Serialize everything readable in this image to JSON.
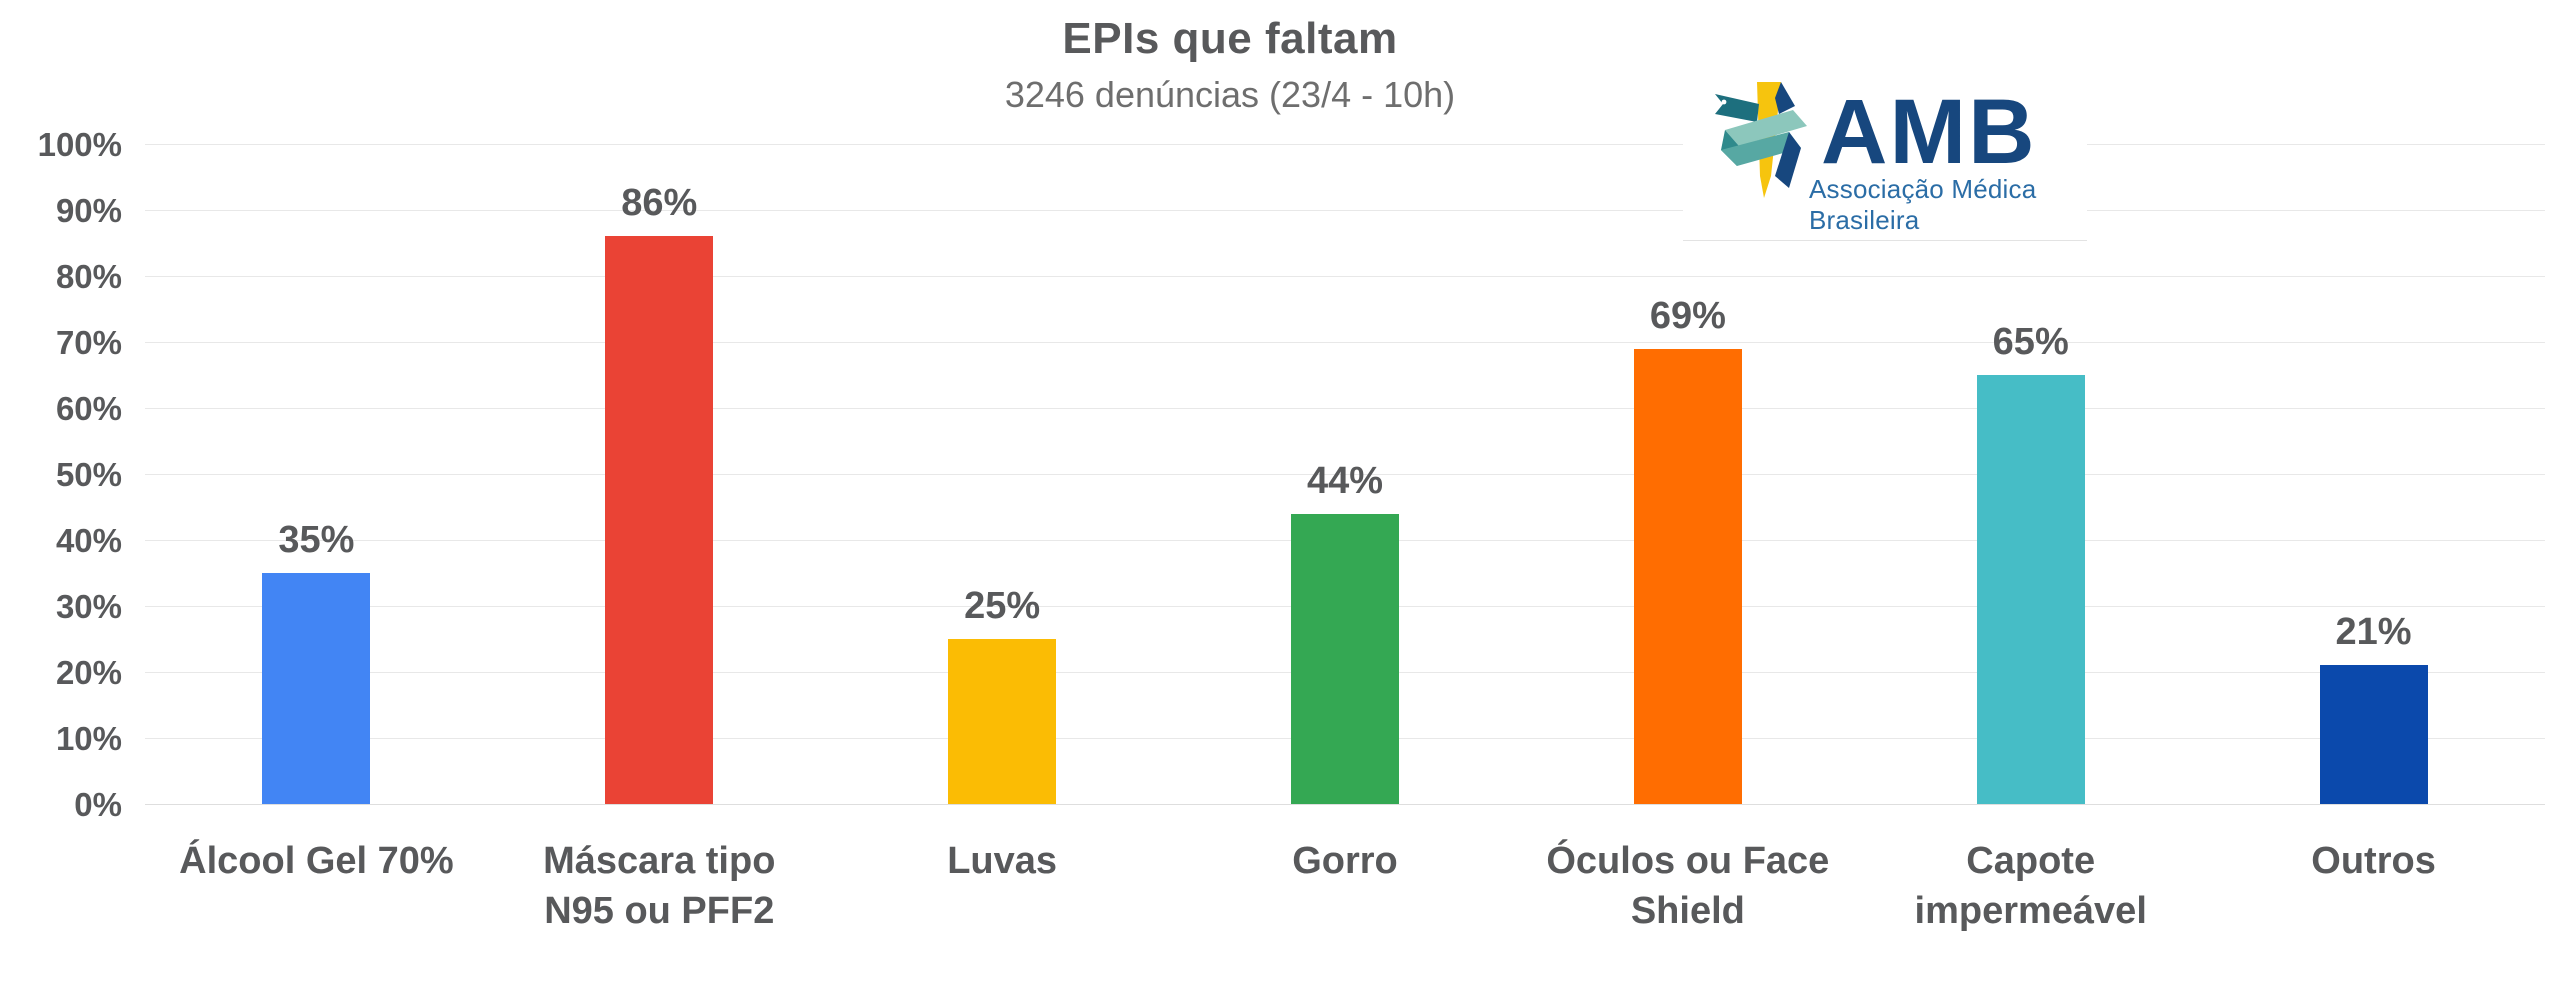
{
  "title": "EPIs que faltam",
  "subtitle": "3246 denúncias (23/4 - 10h)",
  "logo": {
    "acronym": "AMB",
    "tagline": "Associação Médica Brasileira",
    "navy": "#17477e",
    "blue": "#2b6da6",
    "yellow": "#f6c40e",
    "teal_dark": "#2f8a8c",
    "teal_light": "#8cc7bc"
  },
  "chart_data": {
    "type": "bar",
    "title": "EPIs que faltam",
    "subtitle": "3246 denúncias (23/4 - 10h)",
    "categories": [
      "Álcool Gel 70%",
      "Máscara tipo N95 ou PFF2",
      "Luvas",
      "Gorro",
      "Óculos ou Face Shield",
      "Capote impermeável",
      "Outros"
    ],
    "values": [
      35,
      86,
      25,
      44,
      69,
      65,
      21
    ],
    "value_labels": [
      "35%",
      "86%",
      "25%",
      "44%",
      "69%",
      "65%",
      "21%"
    ],
    "bar_colors": [
      "#4285f4",
      "#ea4335",
      "#fbbc04",
      "#34a853",
      "#ff6d01",
      "#46bdc6",
      "#0b49ac"
    ],
    "y_tick_labels": [
      "0%",
      "10%",
      "20%",
      "30%",
      "40%",
      "50%",
      "60%",
      "70%",
      "80%",
      "90%",
      "100%"
    ],
    "ylim": [
      0,
      100
    ],
    "grid": true,
    "legend": "none",
    "label_color": "#58595b",
    "grid_color": "#e8e8e8"
  }
}
